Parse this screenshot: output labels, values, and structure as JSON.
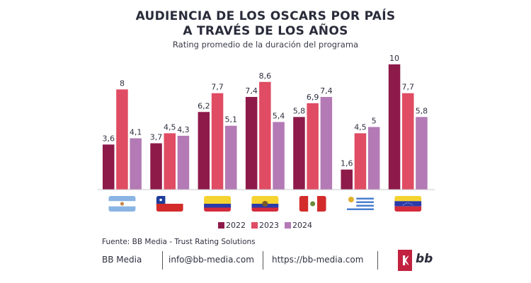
{
  "header": {
    "title_line1": "AUDIENCIA DE LOS OSCARS POR PAÍS",
    "title_line2": "A TRAVÉS DE LOS AÑOS",
    "subtitle": "Rating promedio de la duración del programa"
  },
  "chart_data": {
    "type": "bar",
    "title": "AUDIENCIA DE LOS OSCARS POR PAÍS A TRAVÉS DE LOS AÑOS",
    "subtitle": "Rating promedio de la duración del programa",
    "xlabel": "",
    "ylabel": "",
    "ylim": [
      0,
      10
    ],
    "grid": false,
    "legend_position": "bottom",
    "categories": [
      "Argentina",
      "Chile",
      "Colombia",
      "Ecuador",
      "Perú",
      "Uruguay",
      "Venezuela"
    ],
    "category_icons": [
      "flag-argentina",
      "flag-chile",
      "flag-colombia",
      "flag-ecuador",
      "flag-peru",
      "flag-uruguay",
      "flag-venezuela"
    ],
    "series": [
      {
        "name": "2022",
        "color": "#8e1a4a",
        "values": [
          3.6,
          3.7,
          6.2,
          7.4,
          5.8,
          1.6,
          10
        ],
        "labels": [
          "3,6",
          "3,7",
          "6,2",
          "7,4",
          "5,8",
          "1,6",
          "10"
        ]
      },
      {
        "name": "2023",
        "color": "#e04c63",
        "values": [
          8,
          4.5,
          7.7,
          8.6,
          6.9,
          4.5,
          7.7
        ],
        "labels": [
          "8",
          "4,5",
          "7,7",
          "8,6",
          "6,9",
          "4,5",
          "7,7"
        ]
      },
      {
        "name": "2024",
        "color": "#b37ab5",
        "values": [
          4.1,
          4.3,
          5.1,
          5.4,
          7.4,
          5,
          5.8
        ],
        "labels": [
          "4,1",
          "4,3",
          "5,1",
          "5,4",
          "7,4",
          "5",
          "5,8"
        ]
      }
    ]
  },
  "legend": [
    {
      "label": "2022",
      "color": "#8e1a4a"
    },
    {
      "label": "2023",
      "color": "#e04c63"
    },
    {
      "label": "2024",
      "color": "#b37ab5"
    }
  ],
  "source": "Fuente: BB Media - Trust Rating Solutions",
  "footer": {
    "company": "BB Media",
    "email": "info@bb-media.com",
    "website": "https://bb-media.com",
    "logo_text": "bb"
  }
}
